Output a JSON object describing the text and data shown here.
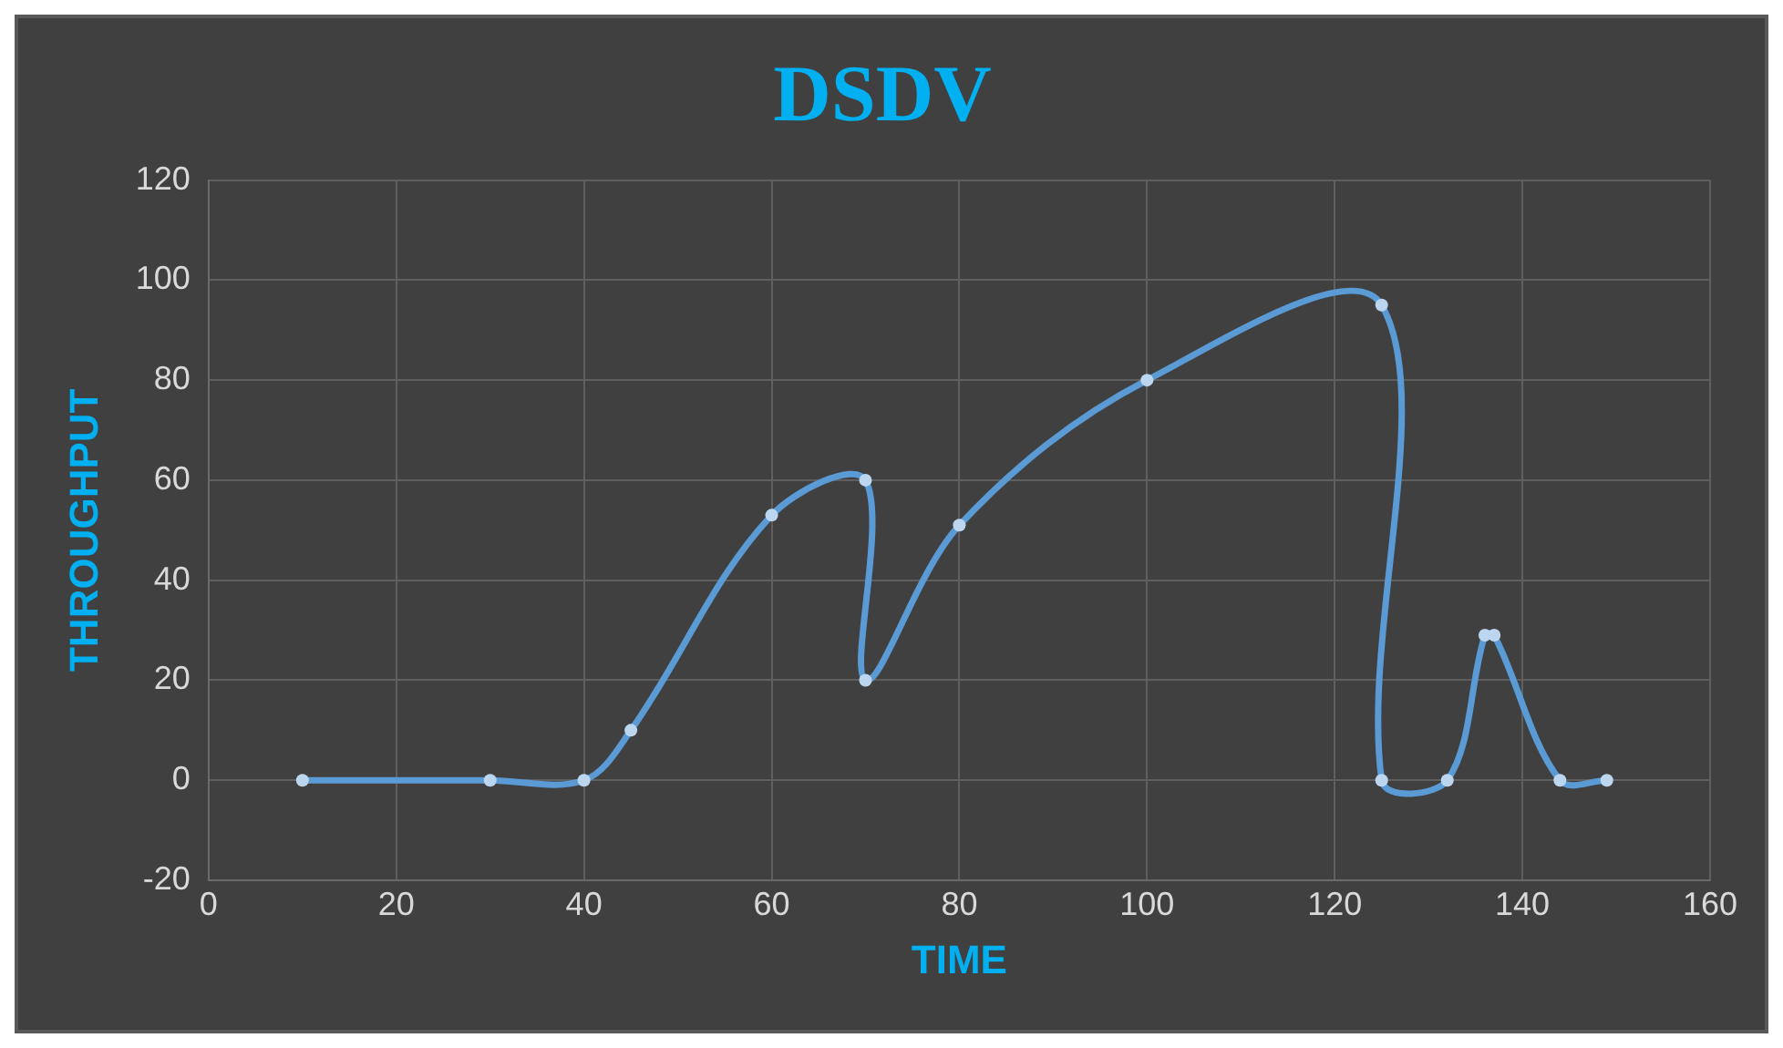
{
  "chart_data": {
    "type": "line",
    "title": "DSDV",
    "xlabel": "TIME",
    "ylabel": "THROUGHPUT",
    "x": [
      10,
      30,
      40,
      45,
      60,
      70,
      70,
      80,
      100,
      125,
      125,
      132,
      136,
      137,
      144,
      149
    ],
    "series": [
      {
        "color": "#5b9bd5",
        "values": [
          0,
          0,
          0,
          10,
          53,
          60,
          20,
          51,
          80,
          95,
          0,
          0,
          29,
          29,
          0,
          0
        ]
      }
    ],
    "xlim": [
      0,
      160
    ],
    "xticks": [
      0,
      20,
      40,
      60,
      80,
      100,
      120,
      140,
      160
    ],
    "ylim": [
      -20,
      120
    ],
    "yticks": [
      -20,
      0,
      20,
      40,
      60,
      80,
      100,
      120
    ],
    "grid": true,
    "legend": false,
    "marker": "circle",
    "line_style": "solid"
  }
}
